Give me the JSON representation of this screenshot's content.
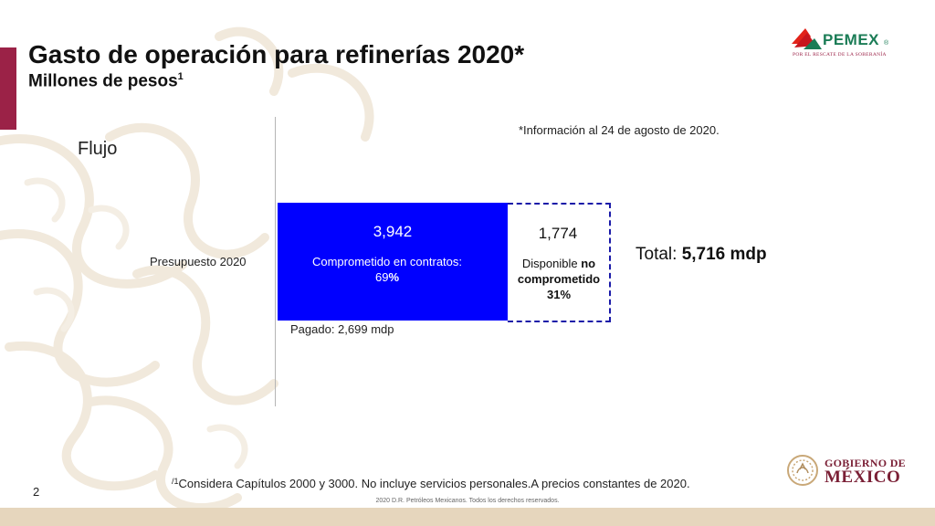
{
  "header": {
    "title": "Gasto de operación para refinerías 2020*",
    "subtitle": "Millones de pesos",
    "subtitle_sup": "1"
  },
  "logo": {
    "name": "PEMEX",
    "registered": "®",
    "tagline": "POR EL RESCATE DE LA SOBERANÍA",
    "brand_green": "#1b7c56",
    "brand_red": "#9b2247"
  },
  "note": "*Información al 24 de agosto de 2020.",
  "chart_data": {
    "type": "bar",
    "orientation": "horizontal-stacked",
    "title": "Flujo",
    "categories": [
      "Presupuesto 2020"
    ],
    "series": [
      {
        "name": "Comprometido en contratos",
        "values": [
          3942
        ],
        "value_label": "3,942",
        "label_prefix": "Comprometido en contratos:",
        "pct_number": "69",
        "pct_sign": "%",
        "color": "#0000ff"
      },
      {
        "name": "Disponible no comprometido",
        "values": [
          1774
        ],
        "value_label": "1,774",
        "label_prefix": "Disponible ",
        "label_bold": "no comprometido",
        "pct": "31%",
        "color": "#ffffff",
        "border": "#1a1aa8"
      }
    ],
    "paid_label": "Pagado: 2,699 mdp",
    "total_prefix": "Total: ",
    "total_value": "5,716 mdp"
  },
  "footer": {
    "footnote_mark": "/1",
    "footnote": "Considera Capítulos 2000 y 3000.  No incluye servicios personales.A precios constantes de 2020.",
    "page_number": "2",
    "copyright": "2020 D.R. Petróleos Mexicanos. Todos los derechos reservados.",
    "gob_line1": "GOBIERNO DE",
    "gob_line2": "MÉXICO",
    "gob_color": "#7a1f35",
    "band_color": "#e6d6bd"
  }
}
